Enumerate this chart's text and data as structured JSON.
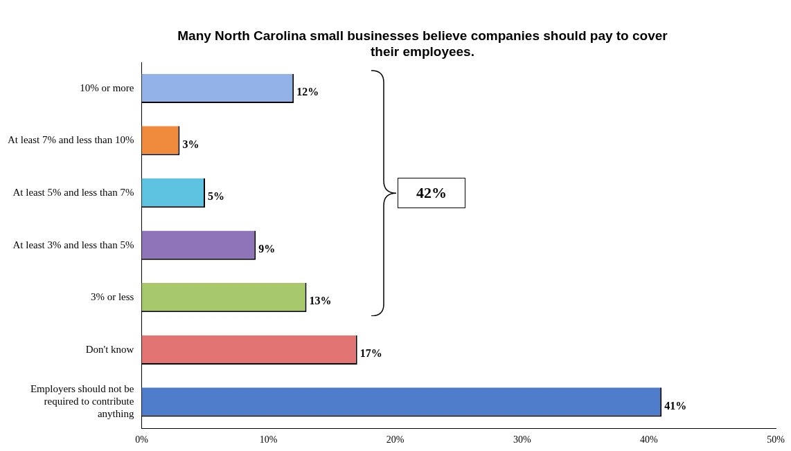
{
  "chart_data": {
    "type": "bar",
    "orientation": "horizontal",
    "title": "Many North Carolina small businesses believe companies should pay to cover their employees.",
    "categories": [
      "10% or more",
      "At least 7% and less than 10%",
      "At least 5% and less than 7%",
      "At least 3% and less than 5%",
      "3% or less",
      "Don't know",
      "Employers should not be required to contribute anything"
    ],
    "values": [
      12,
      3,
      5,
      9,
      13,
      17,
      41
    ],
    "colors": [
      "#93b3e8",
      "#f08a3c",
      "#5ec3e0",
      "#8f74b9",
      "#a7c96b",
      "#e37474",
      "#4f7dcc"
    ],
    "value_labels": [
      "12%",
      "3%",
      "5%",
      "9%",
      "13%",
      "17%",
      "41%"
    ],
    "xlim": [
      0,
      50
    ],
    "xticks": [
      {
        "value": 0,
        "label": "0%"
      },
      {
        "value": 10,
        "label": "10%"
      },
      {
        "value": 20,
        "label": "20%"
      },
      {
        "value": 30,
        "label": "30%"
      },
      {
        "value": 40,
        "label": "40%"
      },
      {
        "value": 50,
        "label": "50%"
      }
    ],
    "annotations": [
      "42%"
    ],
    "grid": false,
    "legend": false
  }
}
